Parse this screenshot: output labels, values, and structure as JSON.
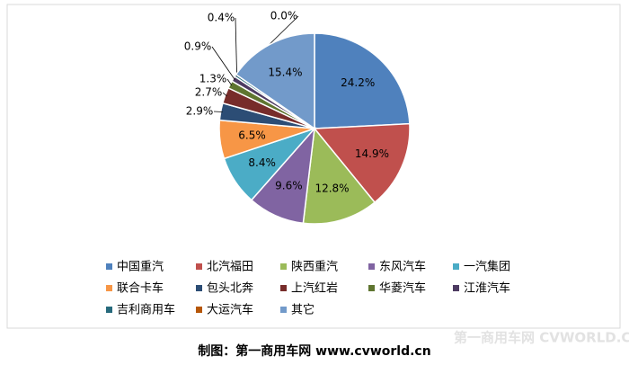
{
  "chart_data": {
    "type": "pie",
    "categories": [
      "中国重汽",
      "北汽福田",
      "陕西重汽",
      "东风汽车",
      "一汽集团",
      "联合卡车",
      "包头北奔",
      "上汽红岩",
      "华菱汽车",
      "江淮汽车",
      "吉利商用车",
      "大运汽车",
      "其它"
    ],
    "values": [
      24.2,
      14.9,
      12.8,
      9.6,
      8.4,
      6.5,
      2.9,
      2.7,
      1.3,
      0.9,
      0.4,
      0.0,
      15.4
    ],
    "value_labels": [
      "24.2%",
      "14.9%",
      "12.8%",
      "9.6%",
      "8.4%",
      "6.5%",
      "2.9%",
      "2.7%",
      "1.3%",
      "0.9%",
      "0.4%",
      "0.0%",
      "15.4%"
    ],
    "colors": [
      "#4f81bd",
      "#c0504d",
      "#9bbb59",
      "#8064a2",
      "#4bacc6",
      "#f79646",
      "#2c4d75",
      "#772c2a",
      "#5f7530",
      "#4d3b62",
      "#276a7c",
      "#b65708",
      "#729aca"
    ],
    "legend": "bottom",
    "caption": "制图：第一商用车网 www.cvworld.cn",
    "watermark": "第一商用车网 CVWORLD.CN"
  }
}
